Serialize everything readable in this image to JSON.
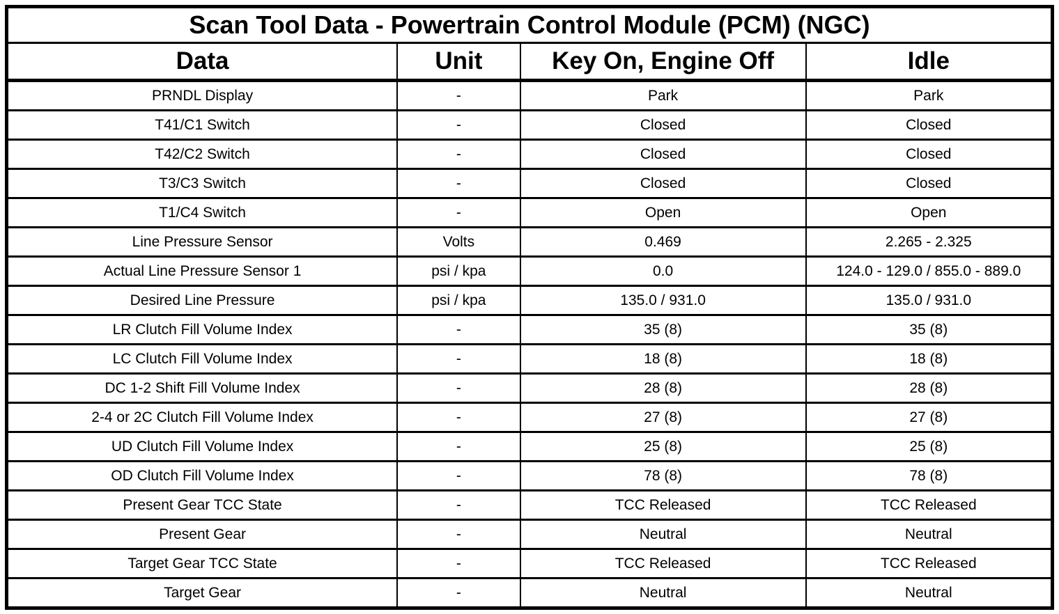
{
  "title": "Scan Tool Data - Powertrain Control Module (PCM) (NGC)",
  "table": {
    "columns": [
      "Data",
      "Unit",
      "Key On, Engine Off",
      "Idle"
    ],
    "rows": [
      [
        "PRNDL Display",
        "-",
        "Park",
        "Park"
      ],
      [
        "T41/C1 Switch",
        "-",
        "Closed",
        "Closed"
      ],
      [
        "T42/C2 Switch",
        "-",
        "Closed",
        "Closed"
      ],
      [
        "T3/C3 Switch",
        "-",
        "Closed",
        "Closed"
      ],
      [
        "T1/C4 Switch",
        "-",
        "Open",
        "Open"
      ],
      [
        "Line Pressure Sensor",
        "Volts",
        "0.469",
        "2.265 - 2.325"
      ],
      [
        "Actual Line Pressure Sensor 1",
        "psi / kpa",
        "0.0",
        "124.0 - 129.0 / 855.0 - 889.0"
      ],
      [
        "Desired Line Pressure",
        "psi / kpa",
        "135.0 / 931.0",
        "135.0 / 931.0"
      ],
      [
        "LR Clutch Fill Volume Index",
        "-",
        "35 (8)",
        "35 (8)"
      ],
      [
        "LC Clutch Fill Volume Index",
        "-",
        "18 (8)",
        "18 (8)"
      ],
      [
        "DC 1-2 Shift Fill Volume Index",
        "-",
        "28 (8)",
        "28 (8)"
      ],
      [
        "2-4 or 2C Clutch Fill Volume Index",
        "-",
        "27 (8)",
        "27 (8)"
      ],
      [
        "UD Clutch Fill Volume Index",
        "-",
        "25 (8)",
        "25 (8)"
      ],
      [
        "OD Clutch Fill Volume Index",
        "-",
        "78 (8)",
        "78 (8)"
      ],
      [
        "Present Gear TCC State",
        "-",
        "TCC Released",
        "TCC Released"
      ],
      [
        "Present Gear",
        "-",
        "Neutral",
        "Neutral"
      ],
      [
        "Target Gear TCC State",
        "-",
        "TCC Released",
        "TCC Released"
      ],
      [
        "Target Gear",
        "-",
        "Neutral",
        "Neutral"
      ]
    ]
  },
  "colors": {
    "border": "#000000",
    "background": "#ffffff",
    "text": "#000000"
  }
}
